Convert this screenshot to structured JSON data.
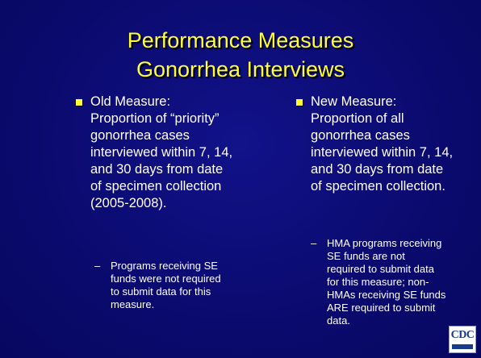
{
  "slide": {
    "title": [
      "Performance Measures",
      "Gonorrhea Interviews"
    ],
    "columns": [
      {
        "main": [
          "Old Measure:",
          "Proportion of “priority”",
          "gonorrhea cases",
          "interviewed within 7, 14,",
          "and 30 days from date",
          "of specimen collection",
          "(2005-2008)."
        ],
        "sub": [
          "Programs receiving SE",
          "funds were not required",
          "to submit data for this",
          "measure."
        ]
      },
      {
        "main": [
          "New Measure:",
          "Proportion of all",
          "gonorrhea cases",
          "interviewed within 7, 14,",
          "and 30 days from date",
          "of specimen collection."
        ],
        "sub": [
          "HMA programs receiving",
          "SE funds are not",
          "required to submit data",
          "for this measure; non-",
          "HMAs receiving SE funds",
          "ARE required to submit",
          "data."
        ]
      }
    ],
    "logo": "CDC"
  }
}
